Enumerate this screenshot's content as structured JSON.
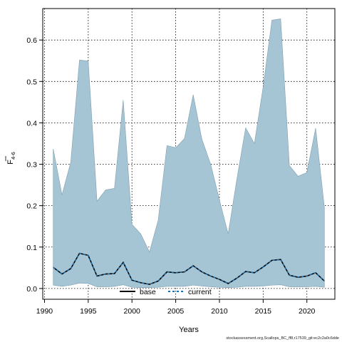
{
  "chart_data": {
    "type": "area",
    "xlabel": "Years",
    "ylabel_main": "F",
    "ylabel_sub": "4-6",
    "xlim": [
      1989.8,
      2023.2
    ],
    "ylim": [
      -0.026,
      0.676
    ],
    "x_ticks": [
      1990,
      1995,
      2000,
      2005,
      2010,
      2015,
      2020
    ],
    "y_ticks": [
      0.0,
      0.1,
      0.2,
      0.3,
      0.4,
      0.5,
      0.6
    ],
    "y_tick_labels": [
      "0.0",
      "0.1",
      "0.2",
      "0.3",
      "0.4",
      "0.5",
      "0.6"
    ],
    "grid": true,
    "legend_position": "bottom",
    "x": [
      1991,
      1992,
      1993,
      1994,
      1995,
      1996,
      1997,
      1998,
      1999,
      2000,
      2001,
      2002,
      2003,
      2004,
      2005,
      2006,
      2007,
      2008,
      2009,
      2010,
      2011,
      2012,
      2013,
      2014,
      2015,
      2016,
      2017,
      2018,
      2019,
      2020,
      2021,
      2022
    ],
    "series": [
      {
        "name": "base",
        "style": "solid",
        "color": "#000000",
        "upper": [
          0.337,
          0.226,
          0.305,
          0.552,
          0.549,
          0.211,
          0.238,
          0.242,
          0.455,
          0.155,
          0.132,
          0.088,
          0.165,
          0.345,
          0.34,
          0.362,
          0.468,
          0.36,
          0.3,
          0.214,
          0.132,
          0.265,
          0.388,
          0.35,
          0.487,
          0.648,
          0.651,
          0.297,
          0.271,
          0.28,
          0.387,
          0.196
        ],
        "lower": [
          0.008,
          0.005,
          0.008,
          0.013,
          0.012,
          0.004,
          0.004,
          0.005,
          0.009,
          0.003,
          0.002,
          0.002,
          0.003,
          0.005,
          0.005,
          0.005,
          0.008,
          0.006,
          0.004,
          0.003,
          0.002,
          0.003,
          0.005,
          0.005,
          0.006,
          0.008,
          0.009,
          0.004,
          0.004,
          0.004,
          0.005,
          0.003
        ]
      },
      {
        "name": "current",
        "style": "dashed",
        "color": "#1f6fa8",
        "values": [
          0.051,
          0.035,
          0.048,
          0.085,
          0.08,
          0.03,
          0.035,
          0.036,
          0.063,
          0.02,
          0.014,
          0.01,
          0.018,
          0.04,
          0.038,
          0.04,
          0.055,
          0.04,
          0.03,
          0.022,
          0.012,
          0.025,
          0.041,
          0.038,
          0.052,
          0.068,
          0.07,
          0.032,
          0.027,
          0.03,
          0.038,
          0.018
        ]
      }
    ],
    "band_color": "#a5c4d4"
  },
  "footer": "stockassessment.org,Scallops_BC_ff8,r17539_git:ec2c2a0c6dde"
}
